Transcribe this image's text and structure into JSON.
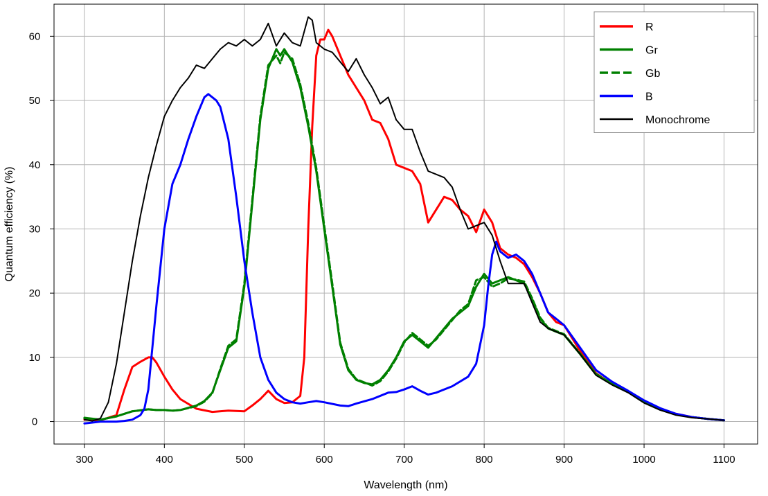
{
  "chart_data": {
    "type": "line",
    "title": "",
    "xlabel": "Wavelength (nm)",
    "ylabel": "Quantum efficiency (%)",
    "xlim": [
      262,
      1142
    ],
    "ylim": [
      -3.5,
      65
    ],
    "xticks": [
      300,
      400,
      500,
      600,
      700,
      800,
      900,
      1000,
      1100
    ],
    "yticks": [
      0,
      10,
      20,
      30,
      40,
      50,
      60
    ],
    "grid": true,
    "legend_position": "top-right",
    "series": [
      {
        "name": "R",
        "color": "#ff0000",
        "dash": "solid",
        "x": [
          300,
          320,
          340,
          350,
          360,
          370,
          380,
          385,
          390,
          400,
          410,
          420,
          440,
          460,
          480,
          500,
          510,
          520,
          530,
          540,
          550,
          560,
          570,
          575,
          580,
          585,
          590,
          595,
          600,
          605,
          610,
          620,
          630,
          640,
          650,
          660,
          670,
          680,
          690,
          700,
          710,
          720,
          730,
          740,
          750,
          760,
          770,
          780,
          790,
          800,
          810,
          820,
          830,
          840,
          850,
          860,
          870,
          880,
          890,
          900,
          920,
          940,
          960,
          980,
          1000,
          1020,
          1040,
          1060,
          1080,
          1100
        ],
        "values": [
          0.3,
          0.2,
          1.0,
          5.0,
          8.5,
          9.3,
          10.0,
          10.0,
          9.2,
          7.0,
          5.0,
          3.5,
          2.0,
          1.5,
          1.7,
          1.6,
          2.5,
          3.5,
          4.8,
          3.5,
          2.9,
          3.0,
          4.0,
          10.0,
          30.0,
          46.0,
          57.0,
          59.5,
          59.5,
          61.0,
          60.0,
          57.0,
          54.0,
          52.0,
          50.0,
          47.0,
          46.5,
          44.0,
          40.0,
          39.5,
          39.0,
          37.0,
          31.0,
          33.0,
          35.0,
          34.5,
          33.0,
          32.0,
          29.5,
          33.0,
          31.0,
          27.0,
          26.0,
          25.5,
          24.5,
          22.5,
          20.0,
          17.0,
          15.5,
          15.0,
          11.0,
          7.5,
          5.8,
          4.7,
          3.1,
          2.0,
          1.2,
          0.7,
          0.4,
          0.2
        ]
      },
      {
        "name": "Gr",
        "color": "#008000",
        "dash": "solid",
        "x": [
          300,
          320,
          340,
          360,
          380,
          390,
          400,
          410,
          420,
          440,
          450,
          460,
          470,
          480,
          490,
          500,
          510,
          520,
          530,
          540,
          545,
          550,
          560,
          570,
          580,
          590,
          600,
          610,
          620,
          630,
          640,
          650,
          660,
          670,
          680,
          690,
          700,
          710,
          720,
          730,
          740,
          750,
          760,
          770,
          780,
          790,
          800,
          810,
          820,
          830,
          840,
          850,
          860,
          870,
          880,
          890,
          900,
          920,
          940,
          960,
          980,
          1000,
          1020,
          1040,
          1060,
          1080,
          1100
        ],
        "values": [
          0.6,
          0.3,
          0.8,
          1.6,
          1.9,
          1.8,
          1.8,
          1.7,
          1.8,
          2.5,
          3.2,
          4.5,
          8.0,
          11.5,
          12.5,
          21.0,
          34.0,
          47.0,
          55.0,
          58.0,
          57.0,
          58.0,
          56.0,
          52.0,
          46.0,
          39.0,
          30.0,
          21.0,
          12.0,
          8.0,
          6.5,
          6.0,
          5.8,
          6.5,
          8.0,
          10.0,
          12.5,
          13.5,
          12.5,
          11.5,
          13.0,
          14.5,
          16.0,
          17.0,
          18.0,
          21.0,
          23.0,
          21.5,
          22.0,
          22.5,
          22.0,
          21.5,
          19.0,
          16.0,
          14.5,
          14.0,
          13.5,
          10.5,
          7.3,
          5.8,
          4.6,
          3.0,
          1.9,
          1.1,
          0.7,
          0.4,
          0.2
        ]
      },
      {
        "name": "Gb",
        "color": "#008000",
        "dash": "dashed",
        "x": [
          300,
          320,
          340,
          360,
          380,
          390,
          400,
          410,
          420,
          440,
          450,
          460,
          470,
          480,
          490,
          500,
          510,
          520,
          530,
          540,
          545,
          550,
          560,
          570,
          580,
          590,
          600,
          610,
          620,
          630,
          640,
          650,
          660,
          670,
          680,
          690,
          700,
          710,
          720,
          730,
          740,
          750,
          760,
          770,
          780,
          790,
          800,
          810,
          820,
          830,
          840,
          850,
          860,
          870,
          880,
          890,
          900,
          920,
          940,
          960,
          980,
          1000,
          1020,
          1040,
          1060,
          1080,
          1100
        ],
        "values": [
          0.5,
          0.3,
          0.8,
          1.6,
          1.9,
          1.8,
          1.8,
          1.7,
          1.8,
          2.4,
          3.1,
          4.4,
          8.2,
          11.8,
          12.8,
          21.5,
          34.5,
          47.5,
          55.5,
          57.0,
          55.8,
          57.5,
          56.5,
          52.5,
          46.5,
          39.5,
          30.5,
          21.5,
          12.3,
          8.2,
          6.6,
          6.1,
          5.6,
          6.3,
          7.8,
          9.8,
          12.3,
          13.8,
          12.8,
          11.8,
          12.8,
          14.3,
          15.8,
          17.3,
          18.3,
          22.0,
          22.5,
          21.0,
          21.5,
          22.3,
          22.1,
          21.8,
          19.2,
          16.2,
          14.6,
          14.1,
          13.6,
          10.6,
          7.4,
          5.9,
          4.7,
          3.1,
          2.0,
          1.1,
          0.7,
          0.4,
          0.2
        ]
      },
      {
        "name": "B",
        "color": "#0000ff",
        "dash": "solid",
        "x": [
          300,
          320,
          340,
          350,
          360,
          370,
          375,
          380,
          390,
          400,
          410,
          420,
          430,
          440,
          450,
          455,
          460,
          465,
          470,
          480,
          490,
          500,
          510,
          520,
          530,
          540,
          550,
          560,
          570,
          580,
          590,
          600,
          620,
          630,
          640,
          660,
          680,
          690,
          700,
          710,
          720,
          730,
          740,
          760,
          780,
          790,
          800,
          805,
          810,
          815,
          820,
          830,
          840,
          850,
          860,
          870,
          880,
          890,
          900,
          920,
          940,
          960,
          980,
          1000,
          1020,
          1040,
          1060,
          1080,
          1100
        ],
        "values": [
          -0.3,
          0.0,
          0.0,
          0.1,
          0.3,
          1.0,
          2.0,
          5.0,
          18.0,
          30.0,
          37.0,
          40.0,
          44.0,
          47.5,
          50.5,
          51.0,
          50.5,
          50.0,
          49.0,
          44.0,
          35.0,
          25.0,
          17.0,
          10.0,
          6.5,
          4.5,
          3.5,
          3.0,
          2.8,
          3.0,
          3.2,
          3.0,
          2.5,
          2.4,
          2.8,
          3.5,
          4.5,
          4.6,
          5.0,
          5.5,
          4.8,
          4.2,
          4.5,
          5.5,
          7.0,
          9.0,
          15.0,
          21.0,
          26.0,
          28.0,
          26.5,
          25.5,
          26.0,
          25.0,
          23.0,
          20.0,
          17.0,
          16.0,
          15.0,
          11.5,
          8.0,
          6.2,
          4.8,
          3.3,
          2.1,
          1.2,
          0.7,
          0.4,
          0.2
        ]
      },
      {
        "name": "Monochrome",
        "color": "#000000",
        "dash": "solid",
        "x": [
          300,
          310,
          320,
          330,
          340,
          350,
          360,
          370,
          380,
          390,
          400,
          410,
          420,
          430,
          440,
          450,
          460,
          470,
          480,
          490,
          500,
          510,
          520,
          530,
          540,
          550,
          560,
          570,
          580,
          585,
          590,
          600,
          610,
          620,
          630,
          640,
          650,
          660,
          670,
          680,
          690,
          700,
          710,
          720,
          730,
          740,
          750,
          760,
          770,
          780,
          790,
          800,
          810,
          820,
          830,
          840,
          850,
          860,
          870,
          880,
          890,
          900,
          920,
          940,
          960,
          980,
          1000,
          1020,
          1040,
          1060,
          1080,
          1100
        ],
        "values": [
          0.3,
          0.1,
          0.5,
          3.0,
          9.0,
          17.0,
          25.0,
          32.0,
          38.0,
          43.0,
          47.5,
          50.0,
          52.0,
          53.5,
          55.5,
          55.0,
          56.5,
          58.0,
          59.0,
          58.5,
          59.5,
          58.5,
          59.5,
          62.0,
          58.5,
          60.5,
          59.0,
          58.5,
          63.0,
          62.5,
          59.0,
          58.0,
          57.5,
          56.0,
          54.5,
          56.5,
          54.0,
          52.0,
          49.5,
          50.5,
          47.0,
          45.5,
          45.5,
          42.0,
          39.0,
          38.5,
          38.0,
          36.5,
          33.0,
          30.0,
          30.5,
          31.0,
          29.0,
          25.0,
          21.5,
          21.5,
          21.5,
          18.5,
          15.5,
          14.5,
          14.0,
          13.5,
          10.5,
          7.2,
          5.7,
          4.5,
          2.9,
          1.8,
          1.0,
          0.6,
          0.4,
          0.2
        ]
      }
    ]
  }
}
